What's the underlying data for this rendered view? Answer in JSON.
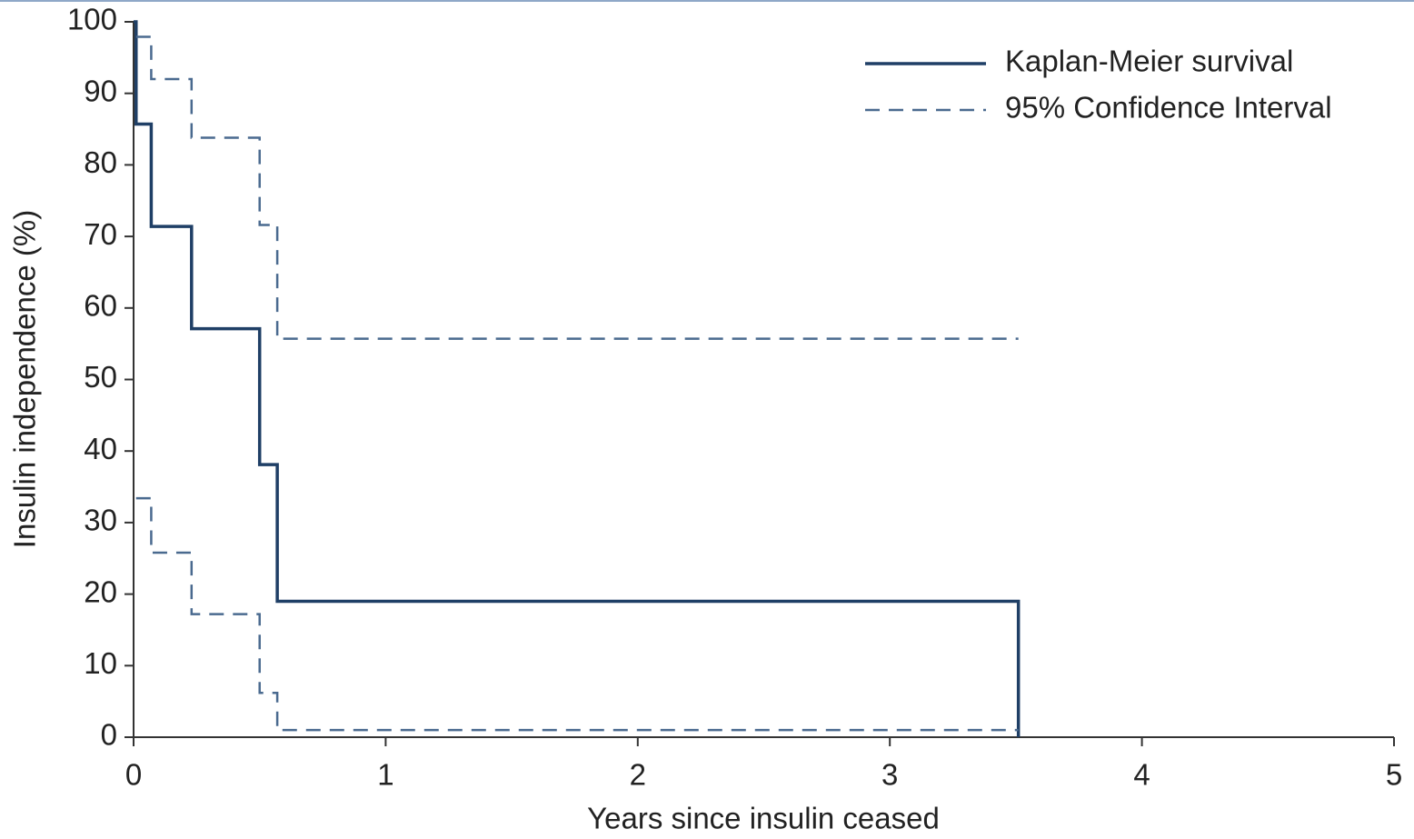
{
  "chart_data": {
    "type": "step",
    "x_label": "Years since insulin ceased",
    "y_label": "Insulin independence (%)",
    "xlim": [
      0,
      5
    ],
    "xticks": [
      0,
      1,
      2,
      3,
      4,
      5
    ],
    "ylim": [
      0,
      100
    ],
    "yticks": [
      0,
      10,
      20,
      30,
      40,
      50,
      60,
      70,
      80,
      90,
      100
    ],
    "legend": "top-right",
    "series": [
      {
        "name": "Kaplan-Meier survival",
        "color": "#1f3f66",
        "dashed": false,
        "x": [
          0,
          0.01,
          0.07,
          0.23,
          0.5,
          0.57,
          3.51
        ],
        "values": [
          100,
          85.7,
          71.4,
          57.1,
          38.1,
          19,
          0
        ]
      },
      {
        "name": "95% Confidence Interval",
        "color": "#4a6a8f",
        "dashed": true,
        "x": [
          0.01,
          0.07,
          0.23,
          0.5,
          0.57,
          3.51
        ],
        "upper": [
          97.9,
          92,
          83.8,
          71.6,
          55.7,
          55.7
        ],
        "lower": [
          33.4,
          25.8,
          17.2,
          6.2,
          1,
          1
        ]
      }
    ]
  }
}
